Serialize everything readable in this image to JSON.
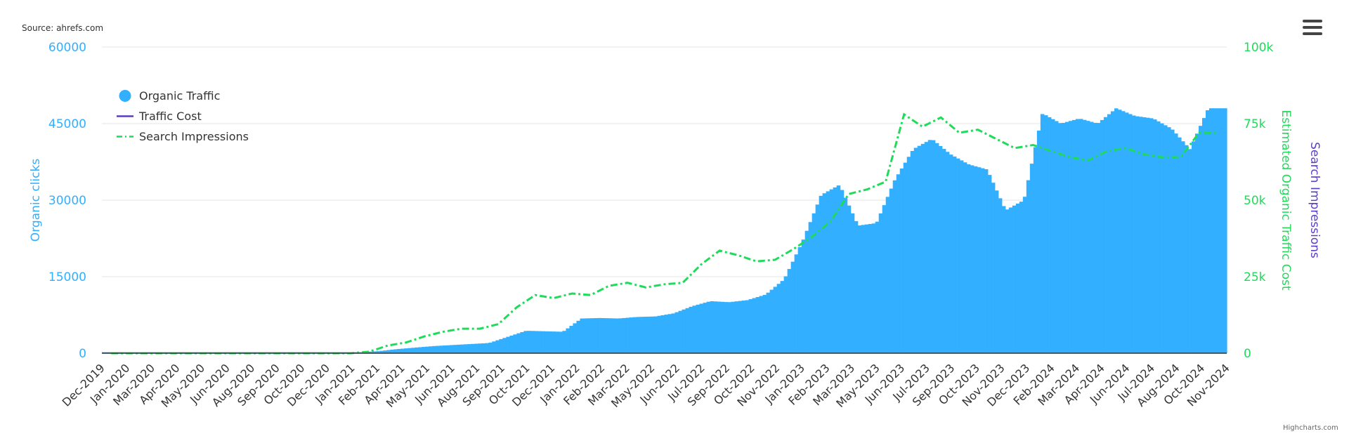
{
  "source_text": "Source: ahrefs.com",
  "credits_text": "Highcharts.com",
  "menu": {
    "icon": "hamburger-menu-icon"
  },
  "colors": {
    "organic_traffic": "#33afff",
    "traffic_cost": "#5a3fc0",
    "search_impressions": "#1edc5a",
    "left_axis": "#33afff",
    "right_axis": "#1edc5a",
    "right_title_2": "#5a3fc0",
    "grid": "#e6e6e6"
  },
  "legend": [
    {
      "name": "Organic Traffic",
      "symbol": "circle"
    },
    {
      "name": "Traffic Cost",
      "symbol": "line"
    },
    {
      "name": "Search Impressions",
      "symbol": "dash-dot"
    }
  ],
  "chart_data": {
    "type": "bar",
    "title": "",
    "grid": true,
    "legend_position": "top-left",
    "left_axis": {
      "title": "Organic clicks",
      "range": [
        0,
        60000
      ],
      "ticks": [
        "0",
        "15000",
        "30000",
        "45000",
        "60000"
      ]
    },
    "right_axis_1": {
      "title": "Estimated Organic Traffic Cost",
      "range": [
        0,
        100000
      ],
      "ticks": [
        "0",
        "25k",
        "50k",
        "75k",
        "100k"
      ]
    },
    "right_axis_2": {
      "title": "Search Impressions"
    },
    "x_labels": [
      "Dec-2019",
      "Jan-2020",
      "Mar-2020",
      "Apr-2020",
      "May-2020",
      "Jun-2020",
      "Aug-2020",
      "Sep-2020",
      "Oct-2020",
      "Dec-2020",
      "Jan-2021",
      "Feb-2021",
      "Apr-2021",
      "May-2021",
      "Jun-2021",
      "Aug-2021",
      "Sep-2021",
      "Oct-2021",
      "Dec-2021",
      "Jan-2022",
      "Feb-2022",
      "Mar-2022",
      "May-2022",
      "Jun-2022",
      "Jul-2022",
      "Sep-2022",
      "Oct-2022",
      "Nov-2022",
      "Jan-2023",
      "Feb-2023",
      "Mar-2023",
      "May-2023",
      "Jun-2023",
      "Jul-2023",
      "Sep-2023",
      "Oct-2023",
      "Nov-2023",
      "Dec-2023",
      "Feb-2024",
      "Mar-2024",
      "Apr-2024",
      "Jun-2024",
      "Jul-2024",
      "Aug-2024",
      "Oct-2024",
      "Nov-2024"
    ],
    "series": [
      {
        "name": "Organic Traffic",
        "type": "column",
        "axis": "left",
        "x": [
          "Dec-2019",
          "Jan-2020",
          "Mar-2020",
          "Apr-2020",
          "May-2020",
          "Jun-2020",
          "Aug-2020",
          "Sep-2020",
          "Oct-2020",
          "Dec-2020",
          "Jan-2021",
          "Feb-2021",
          "Mar-2021",
          "Apr-2021",
          "May-2021",
          "Jun-2021",
          "Jul-2021",
          "Aug-2021",
          "Sep-2021",
          "Oct-2021",
          "Nov-2021",
          "Dec-2021",
          "Jan-2022",
          "Feb-2022",
          "Mar-2022",
          "Apr-2022",
          "May-2022",
          "Jun-2022",
          "Jul-2022",
          "Aug-2022",
          "Sep-2022",
          "Oct-2022",
          "Nov-2022",
          "Dec-2022",
          "Jan-2023",
          "Feb-2023",
          "Mar-2023",
          "Apr-2023",
          "May-2023",
          "Jun-2023",
          "Jul-2023",
          "Aug-2023",
          "Sep-2023",
          "Oct-2023",
          "Nov-2023",
          "Dec-2023",
          "Jan-2024",
          "Feb-2024",
          "Mar-2024",
          "Apr-2024",
          "May-2024",
          "Jun-2024",
          "Jul-2024",
          "Aug-2024",
          "Sep-2024",
          "Oct-2024",
          "Nov-2024",
          "Dec-2024"
        ],
        "values": [
          200,
          200,
          200,
          200,
          200,
          200,
          200,
          200,
          200,
          200,
          200,
          200,
          400,
          800,
          1100,
          1400,
          1600,
          1800,
          2000,
          3200,
          4400,
          4300,
          4200,
          6800,
          6900,
          6800,
          7100,
          7200,
          7800,
          9200,
          10200,
          10000,
          10400,
          11500,
          14500,
          22000,
          31000,
          33000,
          25000,
          25500,
          34000,
          40000,
          42000,
          39000,
          37000,
          36000,
          28000,
          30000,
          47000,
          45000,
          46000,
          45000,
          48000,
          46500,
          46000,
          44000,
          40000,
          48000
        ]
      },
      {
        "name": "Search Impressions",
        "type": "line",
        "axis": "right_1",
        "x": [
          "Dec-2019",
          "Jan-2020",
          "Mar-2020",
          "Apr-2020",
          "May-2020",
          "Jun-2020",
          "Aug-2020",
          "Sep-2020",
          "Oct-2020",
          "Dec-2020",
          "Jan-2021",
          "Feb-2021",
          "Mar-2021",
          "Apr-2021",
          "May-2021",
          "Jun-2021",
          "Jul-2021",
          "Aug-2021",
          "Sep-2021",
          "Oct-2021",
          "Nov-2021",
          "Dec-2021",
          "Jan-2022",
          "Feb-2022",
          "Mar-2022",
          "Apr-2022",
          "May-2022",
          "Jun-2022",
          "Jul-2022",
          "Aug-2022",
          "Sep-2022",
          "Oct-2022",
          "Nov-2022",
          "Dec-2022",
          "Jan-2023",
          "Feb-2023",
          "Mar-2023",
          "Apr-2023",
          "May-2023",
          "Jun-2023",
          "Jul-2023",
          "Aug-2023",
          "Sep-2023",
          "Oct-2023",
          "Nov-2023",
          "Dec-2023",
          "Jan-2024",
          "Feb-2024",
          "Mar-2024",
          "Apr-2024",
          "May-2024",
          "Jun-2024",
          "Jul-2024",
          "Aug-2024",
          "Sep-2024",
          "Oct-2024",
          "Nov-2024",
          "Dec-2024"
        ],
        "values": [
          0,
          0,
          0,
          0,
          0,
          0,
          0,
          0,
          0,
          0,
          0,
          500,
          2500,
          3500,
          5500,
          7000,
          8000,
          8000,
          9500,
          15000,
          19000,
          18000,
          19500,
          19000,
          22000,
          23000,
          21500,
          22500,
          23000,
          29000,
          33500,
          32000,
          30000,
          30500,
          34000,
          38000,
          43000,
          52000,
          53500,
          56000,
          78000,
          74000,
          77000,
          72000,
          73000,
          70000,
          67000,
          68000,
          66000,
          64000,
          63000,
          66000,
          67000,
          65000,
          64000,
          64000,
          72000,
          72000
        ]
      },
      {
        "name": "Traffic Cost",
        "type": "line",
        "axis": "right_2",
        "x": [],
        "values": []
      }
    ]
  }
}
